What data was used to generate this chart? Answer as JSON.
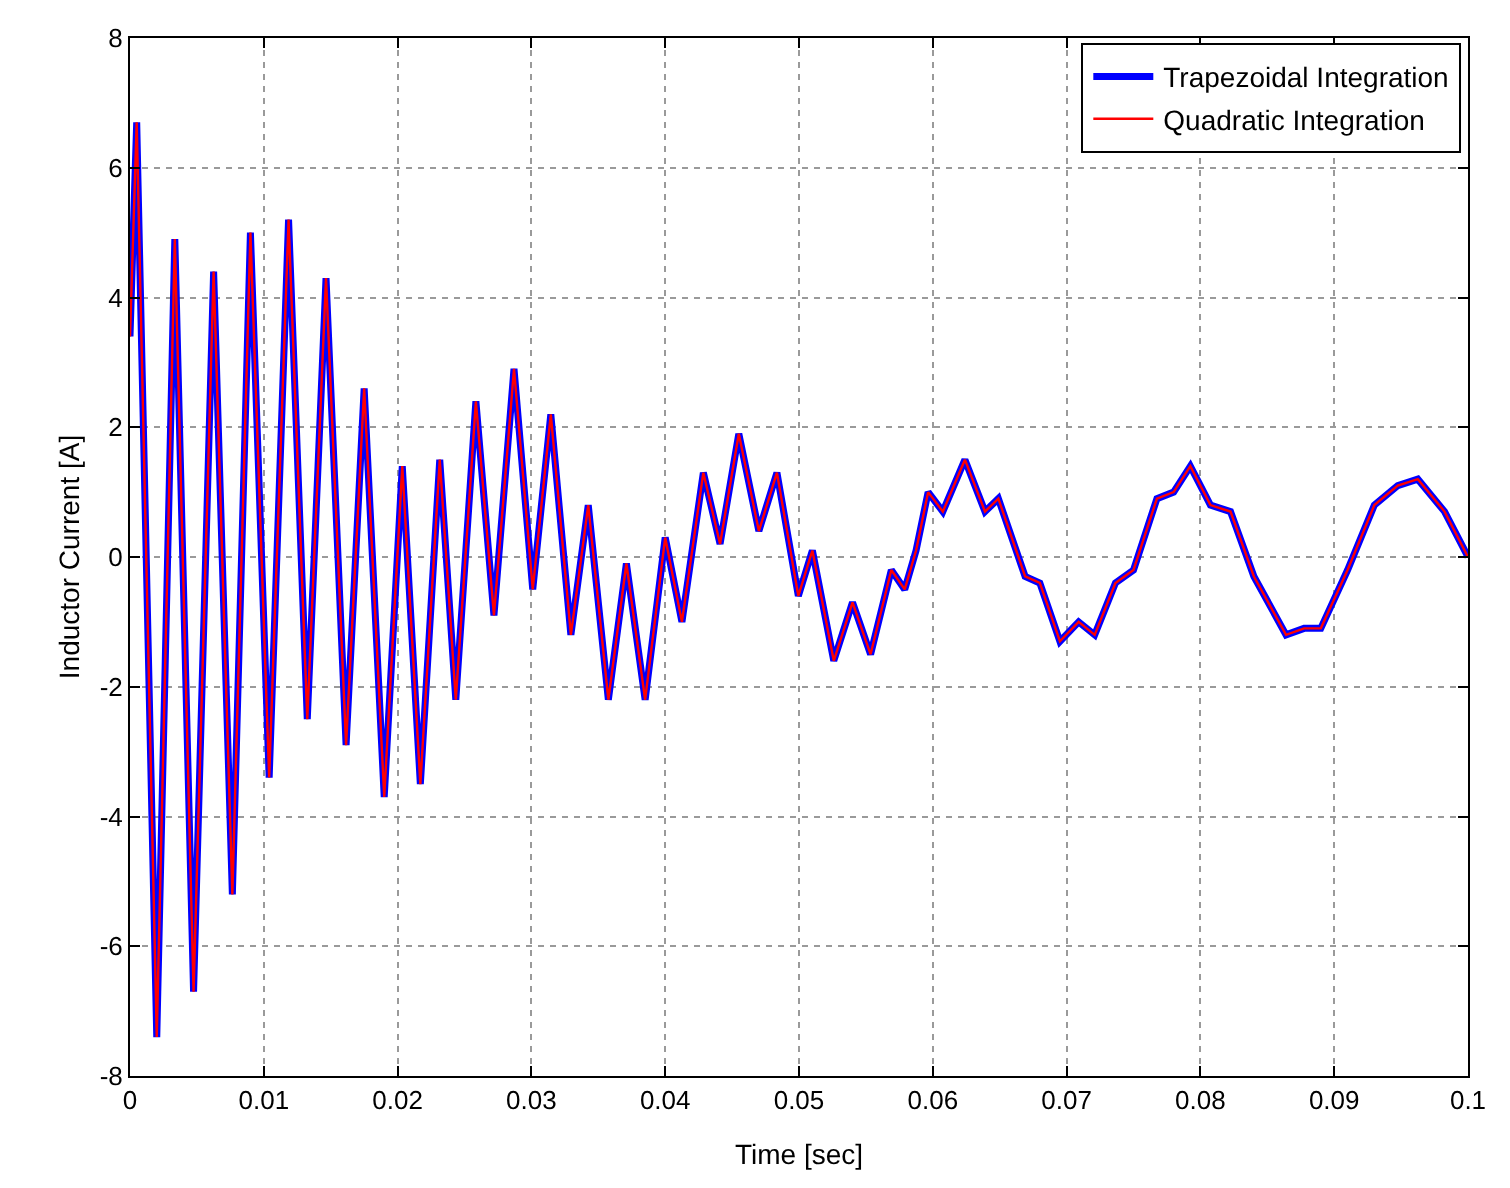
{
  "chart_data": {
    "type": "line",
    "xlabel": "Time [sec]",
    "ylabel": "Inductor Current [A]",
    "x": [
      0,
      0.0005,
      0.002,
      0.00335,
      0.00475,
      0.00625,
      0.00765,
      0.009,
      0.0104,
      0.01185,
      0.01325,
      0.01465,
      0.01615,
      0.0175,
      0.019,
      0.02035,
      0.0217,
      0.02315,
      0.02435,
      0.02585,
      0.0272,
      0.0287,
      0.0301,
      0.03145,
      0.03295,
      0.03425,
      0.03575,
      0.0371,
      0.0385,
      0.04,
      0.04125,
      0.04285,
      0.0441,
      0.0455,
      0.047,
      0.04835,
      0.04995,
      0.051,
      0.0526,
      0.054,
      0.05535,
      0.0569,
      0.0579,
      0.05875,
      0.05965,
      0.06075,
      0.0624,
      0.0639,
      0.0649,
      0.0669,
      0.068,
      0.0695,
      0.0709,
      0.0721,
      0.07365,
      0.075,
      0.07675,
      0.078,
      0.07925,
      0.08075,
      0.08225,
      0.084,
      0.0864,
      0.08775,
      0.089,
      0.091,
      0.093,
      0.09475,
      0.09625,
      0.09825,
      0.1
    ],
    "series": [
      {
        "name": "Trapezoidal Integration",
        "color": "#0000ff",
        "values": [
          3.4,
          6.7,
          -7.4,
          4.9,
          -6.7,
          4.4,
          -5.2,
          5.0,
          -3.4,
          5.2,
          -2.5,
          4.3,
          -2.9,
          2.6,
          -3.7,
          1.4,
          -3.5,
          1.5,
          -2.2,
          2.4,
          -0.9,
          2.9,
          -0.5,
          2.2,
          -1.2,
          0.8,
          -2.2,
          -0.1,
          -2.2,
          0.3,
          -1.0,
          1.3,
          0.2,
          1.9,
          0.4,
          1.3,
          -0.6,
          0.1,
          -1.6,
          -0.7,
          -1.5,
          -0.2,
          -0.5,
          0.1,
          1.0,
          0.7,
          1.5,
          0.7,
          0.9,
          -0.3,
          -0.4,
          -1.3,
          -1.0,
          -1.2,
          -0.4,
          -0.2,
          0.9,
          1.0,
          1.4,
          0.8,
          0.7,
          -0.3,
          -1.2,
          -1.1,
          -1.1,
          -0.2,
          0.8,
          1.1,
          1.2,
          0.7,
          0.0
        ]
      },
      {
        "name": "Quadratic Integration",
        "color": "#ff0000",
        "values": [
          3.4,
          6.7,
          -7.4,
          4.9,
          -6.7,
          4.4,
          -5.2,
          5.0,
          -3.4,
          5.2,
          -2.5,
          4.3,
          -2.9,
          2.6,
          -3.7,
          1.4,
          -3.5,
          1.5,
          -2.2,
          2.4,
          -0.9,
          2.9,
          -0.5,
          2.2,
          -1.2,
          0.8,
          -2.2,
          -0.1,
          -2.2,
          0.3,
          -1.0,
          1.3,
          0.2,
          1.9,
          0.4,
          1.3,
          -0.6,
          0.1,
          -1.6,
          -0.7,
          -1.5,
          -0.2,
          -0.5,
          0.1,
          1.0,
          0.7,
          1.5,
          0.7,
          0.9,
          -0.3,
          -0.4,
          -1.3,
          -1.0,
          -1.2,
          -0.4,
          -0.2,
          0.9,
          1.0,
          1.4,
          0.8,
          0.7,
          -0.3,
          -1.2,
          -1.1,
          -1.1,
          -0.2,
          0.8,
          1.1,
          1.2,
          0.7,
          0.0
        ]
      }
    ],
    "xlim": [
      0,
      0.1
    ],
    "xticks": [
      0,
      0.01,
      0.02,
      0.03,
      0.04,
      0.05,
      0.06,
      0.07,
      0.08,
      0.09,
      0.1
    ],
    "ylim": [
      -8,
      8
    ],
    "yticks": [
      -8,
      -6,
      -4,
      -2,
      0,
      2,
      4,
      6,
      8
    ],
    "grid": true,
    "legend": "top right",
    "marker": "none",
    "line_style": "solid"
  }
}
